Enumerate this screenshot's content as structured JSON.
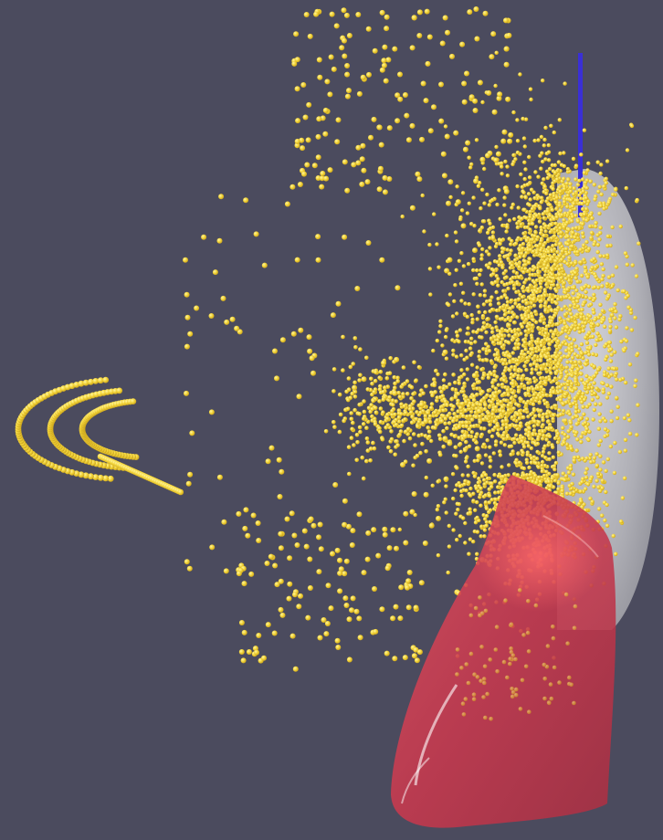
{
  "scene": {
    "background_color": "#4b4b5e",
    "objects": [
      {
        "name": "particle-cloud",
        "color": "#f2d23a",
        "shape": "spheres"
      },
      {
        "name": "gray-ellipsoid",
        "color": "#b9b9bf",
        "shape": "half-ellipsoid"
      },
      {
        "name": "red-funnel",
        "color": "#d0465a",
        "shape": "tapered-funnel"
      },
      {
        "name": "probe-rod",
        "color": "#3b2ccc",
        "shape": "rod"
      }
    ]
  }
}
